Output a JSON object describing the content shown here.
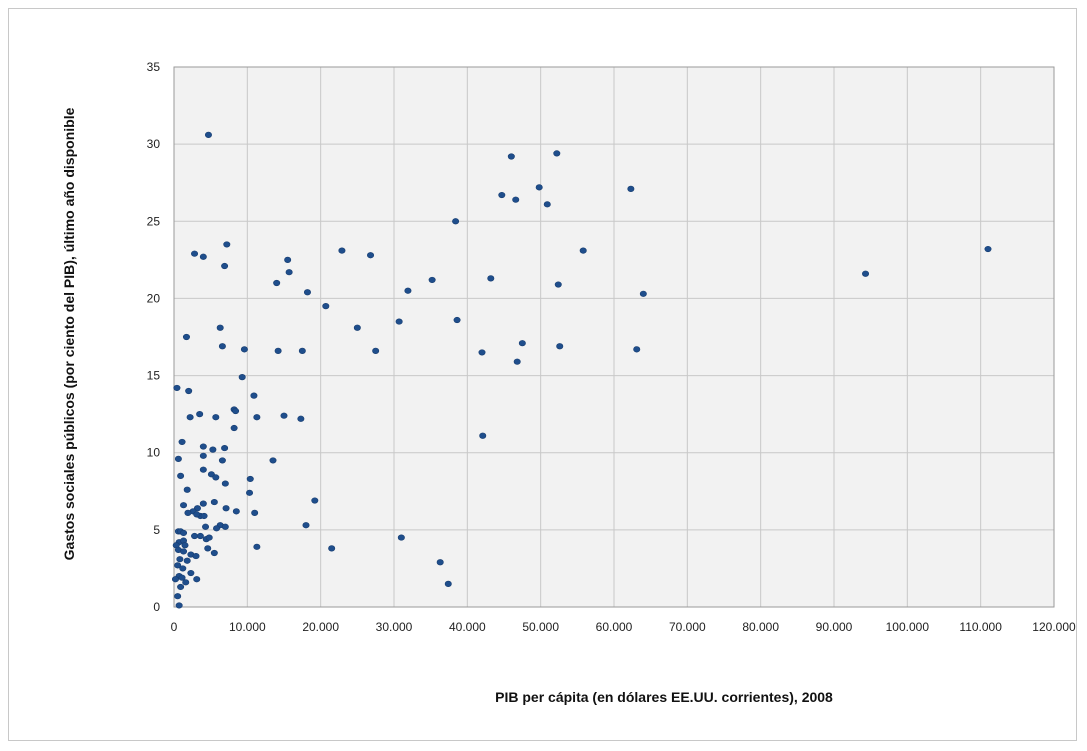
{
  "chart_data": {
    "type": "scatter",
    "title": "",
    "xlabel": "PIB per cápita (en dólares EE.UU. corrientes), 2008",
    "ylabel": "Gastos sociales públicos (por ciento del PIB), último año disponible",
    "xlim": [
      0,
      120000
    ],
    "ylim": [
      0,
      35
    ],
    "x_ticks": [
      0,
      10000,
      20000,
      30000,
      40000,
      50000,
      60000,
      70000,
      80000,
      90000,
      100000,
      110000,
      120000
    ],
    "x_tick_labels": [
      "0",
      "10.000",
      "20.000",
      "30.000",
      "40.000",
      "50.000",
      "60.000",
      "70.000",
      "80.000",
      "90.000",
      "100.000",
      "110.000",
      "120.000"
    ],
    "y_ticks": [
      0,
      5,
      10,
      15,
      20,
      25,
      30,
      35
    ],
    "y_tick_labels": [
      "0",
      "5",
      "10",
      "15",
      "20",
      "25",
      "30",
      "35"
    ],
    "grid": true,
    "legend": "none",
    "plot_background": "#f2f2f2",
    "grid_color": "#c8c8c8",
    "marker_color": "#1f4e8c",
    "points": [
      [
        4700,
        30.6
      ],
      [
        46000,
        29.2
      ],
      [
        52200,
        29.4
      ],
      [
        49800,
        27.2
      ],
      [
        62300,
        27.1
      ],
      [
        44700,
        26.7
      ],
      [
        46600,
        26.4
      ],
      [
        50900,
        26.1
      ],
      [
        38400,
        25.0
      ],
      [
        7200,
        23.5
      ],
      [
        2800,
        22.9
      ],
      [
        4000,
        22.7
      ],
      [
        22900,
        23.1
      ],
      [
        26800,
        22.8
      ],
      [
        55800,
        23.1
      ],
      [
        111000,
        23.2
      ],
      [
        6900,
        22.1
      ],
      [
        15500,
        22.5
      ],
      [
        15700,
        21.7
      ],
      [
        14000,
        21.0
      ],
      [
        35200,
        21.2
      ],
      [
        43200,
        21.3
      ],
      [
        94300,
        21.6
      ],
      [
        52400,
        20.9
      ],
      [
        18200,
        20.4
      ],
      [
        31900,
        20.5
      ],
      [
        64000,
        20.3
      ],
      [
        20700,
        19.5
      ],
      [
        30700,
        18.5
      ],
      [
        38600,
        18.6
      ],
      [
        25000,
        18.1
      ],
      [
        6300,
        18.1
      ],
      [
        1700,
        17.5
      ],
      [
        47500,
        17.1
      ],
      [
        6600,
        16.9
      ],
      [
        52600,
        16.9
      ],
      [
        9600,
        16.7
      ],
      [
        14200,
        16.6
      ],
      [
        17500,
        16.6
      ],
      [
        27500,
        16.6
      ],
      [
        42000,
        16.5
      ],
      [
        63100,
        16.7
      ],
      [
        46800,
        15.9
      ],
      [
        9300,
        14.9
      ],
      [
        400,
        14.2
      ],
      [
        2000,
        14.0
      ],
      [
        10900,
        13.7
      ],
      [
        8200,
        12.8
      ],
      [
        8400,
        12.7
      ],
      [
        3500,
        12.5
      ],
      [
        5700,
        12.3
      ],
      [
        2200,
        12.3
      ],
      [
        11300,
        12.3
      ],
      [
        15000,
        12.4
      ],
      [
        17300,
        12.2
      ],
      [
        8200,
        11.6
      ],
      [
        42100,
        11.1
      ],
      [
        1100,
        10.7
      ],
      [
        4000,
        10.4
      ],
      [
        5300,
        10.2
      ],
      [
        6900,
        10.3
      ],
      [
        600,
        9.6
      ],
      [
        4000,
        9.8
      ],
      [
        6600,
        9.5
      ],
      [
        13500,
        9.5
      ],
      [
        4000,
        8.9
      ],
      [
        5100,
        8.6
      ],
      [
        900,
        8.5
      ],
      [
        10400,
        8.3
      ],
      [
        5700,
        8.4
      ],
      [
        7000,
        8.0
      ],
      [
        1800,
        7.6
      ],
      [
        10300,
        7.4
      ],
      [
        19200,
        6.9
      ],
      [
        5500,
        6.8
      ],
      [
        4000,
        6.7
      ],
      [
        1300,
        6.6
      ],
      [
        3200,
        6.4
      ],
      [
        2600,
        6.2
      ],
      [
        7100,
        6.4
      ],
      [
        8500,
        6.2
      ],
      [
        11000,
        6.1
      ],
      [
        1900,
        6.1
      ],
      [
        3600,
        5.9
      ],
      [
        4100,
        5.9
      ],
      [
        3100,
        6.0
      ],
      [
        6300,
        5.3
      ],
      [
        7000,
        5.2
      ],
      [
        18000,
        5.3
      ],
      [
        4300,
        5.2
      ],
      [
        5800,
        5.1
      ],
      [
        600,
        4.9
      ],
      [
        900,
        4.9
      ],
      [
        1300,
        4.8
      ],
      [
        2800,
        4.6
      ],
      [
        4400,
        4.4
      ],
      [
        700,
        4.2
      ],
      [
        3600,
        4.6
      ],
      [
        4800,
        4.5
      ],
      [
        31000,
        4.5
      ],
      [
        1300,
        4.3
      ],
      [
        300,
        4.0
      ],
      [
        1500,
        4.0
      ],
      [
        11300,
        3.9
      ],
      [
        4600,
        3.8
      ],
      [
        21500,
        3.8
      ],
      [
        600,
        3.7
      ],
      [
        1300,
        3.6
      ],
      [
        5500,
        3.5
      ],
      [
        2300,
        3.4
      ],
      [
        3000,
        3.3
      ],
      [
        800,
        3.1
      ],
      [
        1800,
        3.0
      ],
      [
        500,
        2.7
      ],
      [
        36300,
        2.9
      ],
      [
        1200,
        2.5
      ],
      [
        2300,
        2.2
      ],
      [
        700,
        2.0
      ],
      [
        1100,
        1.9
      ],
      [
        3100,
        1.8
      ],
      [
        200,
        1.8
      ],
      [
        1600,
        1.6
      ],
      [
        37400,
        1.5
      ],
      [
        900,
        1.3
      ],
      [
        500,
        0.7
      ],
      [
        700,
        0.1
      ]
    ]
  }
}
